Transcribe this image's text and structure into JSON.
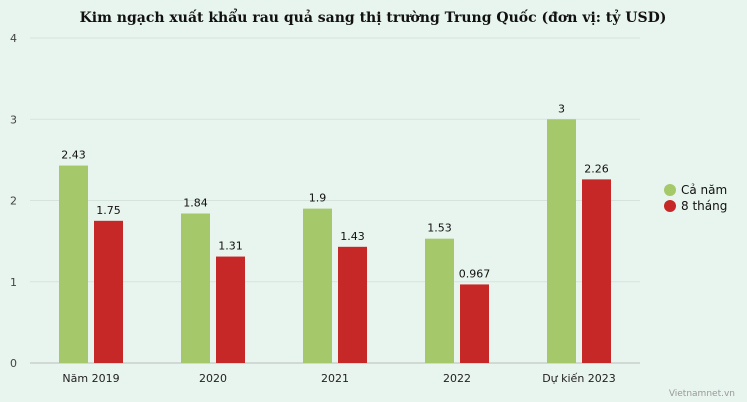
{
  "chart_data": {
    "type": "bar",
    "title": "Kim ngạch xuất khẩu rau quả sang thị trường Trung Quốc (đơn vị: tỷ USD)",
    "categories": [
      "Năm 2019",
      "2020",
      "2021",
      "2022",
      "Dự kiến 2023"
    ],
    "series": [
      {
        "name": "Cả năm",
        "values": [
          2.43,
          1.84,
          1.9,
          1.53,
          3
        ],
        "color": "#a5c96a"
      },
      {
        "name": "8 tháng",
        "values": [
          1.75,
          1.31,
          1.43,
          0.967,
          2.26
        ],
        "color": "#c62828"
      }
    ],
    "ylim": [
      0,
      4
    ],
    "yticks": [
      0,
      1,
      2,
      3,
      4
    ],
    "grid": true,
    "legend": "right",
    "xlabel": "",
    "ylabel": ""
  },
  "credit": "Vietnamnet.vn"
}
